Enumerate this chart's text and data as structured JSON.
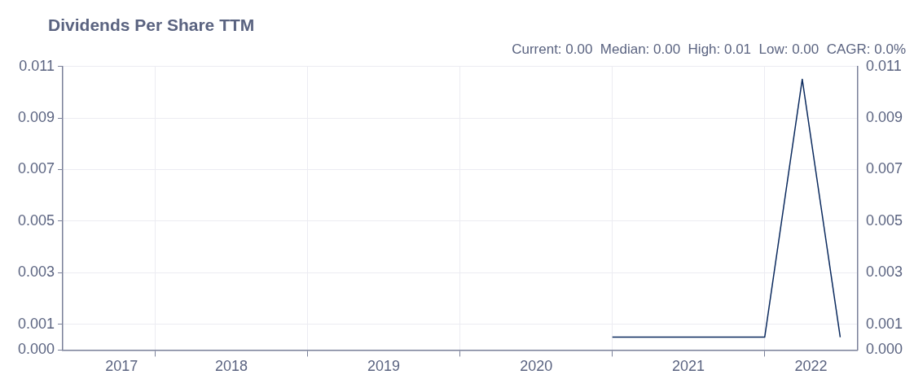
{
  "chart_data": {
    "type": "line",
    "title": "Dividends Per Share TTM",
    "subtitle": "Current: 0.00  Median: 0.00  High: 0.01  Low: 0.00  CAGR: 0.0%",
    "series": [
      {
        "color": "#0b2a5e",
        "x": [
          "2021-01-01",
          "2022-01-01",
          "2022-04-01",
          "2022-07-01"
        ],
        "values": [
          0.0005,
          0.0005,
          0.0105,
          0.0005
        ]
      }
    ],
    "xlim": [
      "2017-05-24",
      "2022-08-12"
    ],
    "xticks": [
      {
        "value": "2017-10-12",
        "label": "2017"
      },
      {
        "value": "2018-01-01",
        "label": null
      },
      {
        "value": "2018-07-02",
        "label": "2018"
      },
      {
        "value": "2019-01-01",
        "label": null
      },
      {
        "value": "2019-07-02",
        "label": "2019"
      },
      {
        "value": "2020-01-01",
        "label": null
      },
      {
        "value": "2020-07-02",
        "label": "2020"
      },
      {
        "value": "2021-01-01",
        "label": null
      },
      {
        "value": "2021-07-02",
        "label": "2021"
      },
      {
        "value": "2022-01-01",
        "label": null
      },
      {
        "value": "2022-04-22",
        "label": "2022"
      }
    ],
    "ylim": [
      0,
      0.011
    ],
    "yticks": [
      {
        "value": 0,
        "label": "0.000"
      },
      {
        "value": 0.001,
        "label": "0.001"
      },
      {
        "value": 0.003,
        "label": "0.003"
      },
      {
        "value": 0.005,
        "label": "0.005"
      },
      {
        "value": 0.007,
        "label": "0.007"
      },
      {
        "value": 0.009,
        "label": "0.009"
      },
      {
        "value": 0.011,
        "label": "0.011"
      }
    ],
    "y2lim": [
      0,
      0.011
    ],
    "y2ticks": [
      {
        "value": 0,
        "label": "0.000"
      },
      {
        "value": 0.001,
        "label": "0.001"
      },
      {
        "value": 0.003,
        "label": "0.003"
      },
      {
        "value": 0.005,
        "label": "0.005"
      },
      {
        "value": 0.007,
        "label": "0.007"
      },
      {
        "value": 0.009,
        "label": "0.009"
      },
      {
        "value": 0.011,
        "label": "0.011"
      }
    ],
    "grid": true,
    "legend": false,
    "marker": "none",
    "line_style": "solid"
  }
}
